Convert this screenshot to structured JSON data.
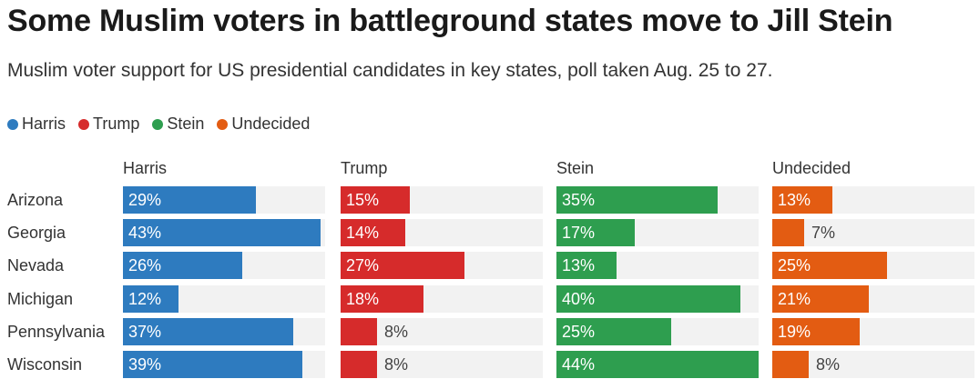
{
  "chart_data": {
    "type": "bar",
    "title": "Some Muslim voters in battleground states move to Jill Stein",
    "subtitle": "Muslim voter support for US presidential candidates in key states, poll taken Aug. 25 to 27.",
    "categories": [
      "Arizona",
      "Georgia",
      "Nevada",
      "Michigan",
      "Pennsylvania",
      "Wisconsin"
    ],
    "series": [
      {
        "name": "Harris",
        "color": "#2e7bbf",
        "values": [
          29,
          43,
          26,
          12,
          37,
          39
        ]
      },
      {
        "name": "Trump",
        "color": "#d62b2b",
        "values": [
          15,
          14,
          27,
          18,
          8,
          8
        ]
      },
      {
        "name": "Stein",
        "color": "#2e9e4f",
        "values": [
          35,
          17,
          13,
          40,
          25,
          44
        ]
      },
      {
        "name": "Undecided",
        "color": "#e35c12",
        "values": [
          13,
          7,
          25,
          21,
          19,
          8
        ]
      }
    ],
    "xlim": [
      0,
      44
    ],
    "value_suffix": "%",
    "legend_position": "top-left"
  }
}
